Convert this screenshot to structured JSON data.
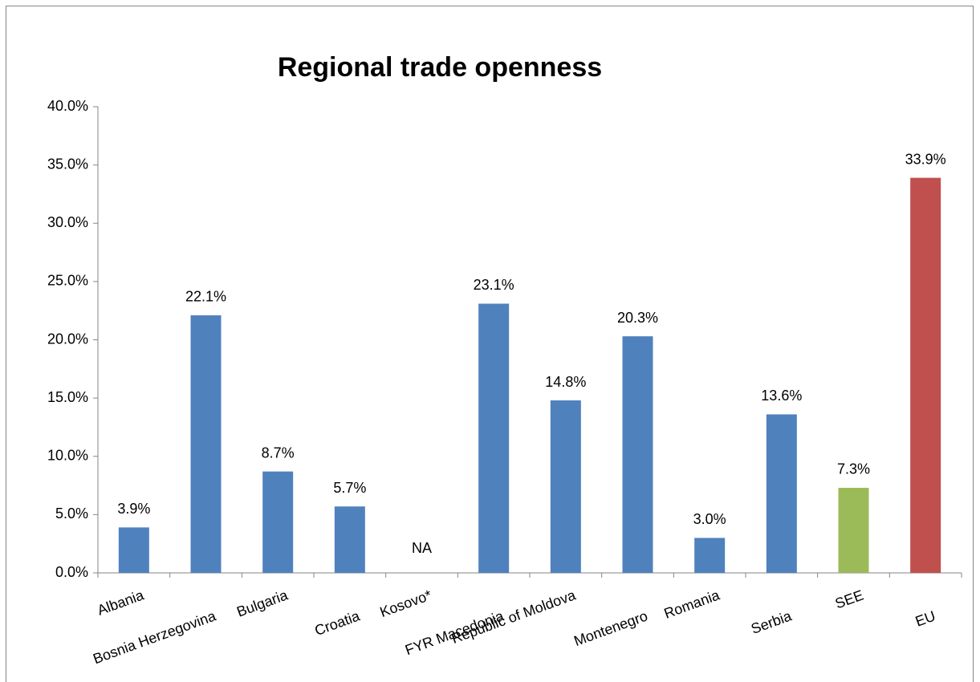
{
  "chart_data": {
    "type": "bar",
    "title": "Regional trade openness",
    "categories": [
      "Albania",
      "Bosnia Herzegovina",
      "Bulgaria",
      "Croatia",
      "Kosovo*",
      "FYR Macedonia",
      "Republic of Moldova",
      "Montenegro",
      "Romania",
      "Serbia",
      "SEE",
      "EU"
    ],
    "values": [
      3.9,
      22.1,
      8.7,
      5.7,
      null,
      23.1,
      14.8,
      20.3,
      3.0,
      13.6,
      7.3,
      33.9
    ],
    "value_labels": [
      "3.9%",
      "22.1%",
      "8.7%",
      "5.7%",
      "NA",
      "23.1%",
      "14.8%",
      "20.3%",
      "3.0%",
      "13.6%",
      "7.3%",
      "33.9%"
    ],
    "colors": [
      "#4f81bd",
      "#4f81bd",
      "#4f81bd",
      "#4f81bd",
      "#4f81bd",
      "#4f81bd",
      "#4f81bd",
      "#4f81bd",
      "#4f81bd",
      "#4f81bd",
      "#9bbb59",
      "#c0504d"
    ],
    "ylim": [
      0,
      40
    ],
    "yticks": [
      {
        "value": 0,
        "label": "0.0%"
      },
      {
        "value": 5,
        "label": "5.0%"
      },
      {
        "value": 10,
        "label": "10.0%"
      },
      {
        "value": 15,
        "label": "15.0%"
      },
      {
        "value": 20,
        "label": "20.0%"
      },
      {
        "value": 25,
        "label": "25.0%"
      },
      {
        "value": 30,
        "label": "30.0%"
      },
      {
        "value": 35,
        "label": "35.0%"
      },
      {
        "value": 40,
        "label": "40.0%"
      }
    ],
    "grid": false
  }
}
